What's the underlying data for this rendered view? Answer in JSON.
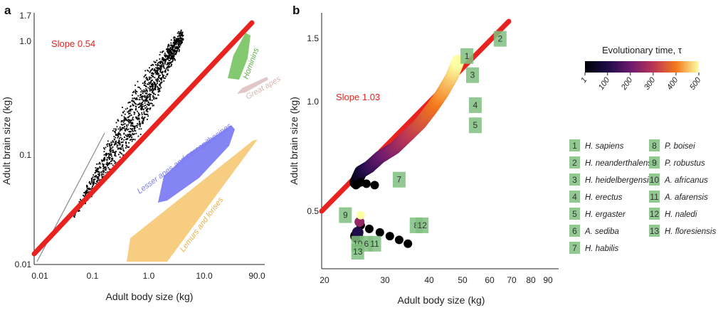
{
  "colors": {
    "fit_line": "#e8231f",
    "hominin_badge": "#7fc07f",
    "scatter": "#000000",
    "apes_region": "#6f6ff2",
    "lemurs_region": "#f5c262",
    "hominins_region": "#6cbf57",
    "other_region": "#d9b9b9",
    "gray_line": "#8a8a8a"
  },
  "panels": {
    "a": {
      "letter": "a",
      "slope_label": "Slope 0.54",
      "xlabel": "Adult body size (kg)",
      "ylabel": "Adult brain size (kg)",
      "x_ticks": [
        "0.01",
        "0.1",
        "1.0",
        "10.0",
        "90.0"
      ],
      "y_ticks": [
        "0.01",
        "0.1",
        "1.0",
        "1.7"
      ],
      "region_labels": {
        "apes": "Lesser apes and cercopithecines",
        "lemurs": "Lemurs and lorises",
        "hominins": "Hominins",
        "other": "Great apes"
      }
    },
    "b": {
      "letter": "b",
      "slope_label": "Slope 1.03",
      "xlabel": "Adult body size (kg)",
      "ylabel": "Adult brain size (kg)",
      "x_ticks": [
        "20",
        "30",
        "40",
        "50",
        "60",
        "70",
        "80",
        "90"
      ],
      "y_ticks": [
        "0.5",
        "1.0",
        "1.5"
      ]
    }
  },
  "colorbar": {
    "title": "Evolutionary time, τ",
    "ticks": [
      "1",
      "100",
      "200",
      "300",
      "400",
      "500"
    ]
  },
  "legend": {
    "col1": [
      {
        "num": "1",
        "name": "H. sapiens"
      },
      {
        "num": "2",
        "name": "H. neanderthalensis"
      },
      {
        "num": "3",
        "name": "H. heidelbergensis"
      },
      {
        "num": "4",
        "name": "H. erectus"
      },
      {
        "num": "5",
        "name": "H. ergaster"
      },
      {
        "num": "6",
        "name": "A. sediba"
      },
      {
        "num": "7",
        "name": "H. habilis"
      }
    ],
    "col2": [
      {
        "num": "8",
        "name": "P. boisei"
      },
      {
        "num": "9",
        "name": "P. robustus"
      },
      {
        "num": "10",
        "name": "A. africanus"
      },
      {
        "num": "11",
        "name": "A. afarensis"
      },
      {
        "num": "12",
        "name": "H. naledi"
      },
      {
        "num": "13",
        "name": "H. floresiensis"
      }
    ]
  },
  "chart_data": [
    {
      "type": "scatter",
      "panel": "a",
      "xlabel": "Adult body size (kg)",
      "ylabel": "Adult brain size (kg)",
      "xscale": "log",
      "yscale": "log",
      "xlim": [
        0.01,
        90
      ],
      "ylim": [
        0.01,
        1.7
      ],
      "fit_line": {
        "label": "Slope 0.54",
        "slope": 0.54,
        "x": [
          0.01,
          90
        ],
        "y": [
          0.0135,
          1.6
        ]
      },
      "scatter_extent": {
        "x": [
          0.05,
          4.5
        ],
        "y": [
          0.018,
          0.45
        ]
      },
      "regions": [
        {
          "name": "Lesser apes and cercopithecines",
          "x": [
            0.8,
            16
          ],
          "y": [
            0.035,
            0.17
          ]
        },
        {
          "name": "Lemurs and lorises",
          "x": [
            0.4,
            40
          ],
          "y": [
            0.007,
            0.12
          ]
        },
        {
          "name": "Hominins",
          "x": [
            25,
            50
          ],
          "y": [
            0.35,
            1.3
          ]
        },
        {
          "name": "Great apes",
          "x": [
            30,
            90
          ],
          "y": [
            0.25,
            0.35
          ]
        }
      ]
    },
    {
      "type": "line",
      "panel": "b",
      "xlabel": "Adult body size (kg)",
      "ylabel": "Adult brain size (kg)",
      "xscale": "log",
      "yscale": "log",
      "xlim": [
        20,
        90
      ],
      "ylim": [
        0.38,
        1.7
      ],
      "fit_line": {
        "label": "Slope 1.03",
        "slope": 1.03,
        "x": [
          20,
          70
        ],
        "y": [
          0.47,
          1.66
        ]
      },
      "trajectory": {
        "x": [
          49,
          47,
          44,
          41,
          38,
          35,
          32,
          29,
          27,
          25.5,
          24.7
        ],
        "y": [
          1.28,
          1.17,
          1.06,
          0.97,
          0.89,
          0.83,
          0.77,
          0.73,
          0.69,
          0.67,
          0.63
        ],
        "tau": [
          500,
          460,
          420,
          380,
          340,
          300,
          240,
          180,
          120,
          60,
          1
        ]
      },
      "branch_points": {
        "x": [
          24.7,
          25.5,
          26.5,
          28
        ],
        "y": [
          0.62,
          0.63,
          0.625,
          0.62
        ]
      },
      "lower_branch": {
        "x": [
          25.5,
          27,
          29,
          31,
          33,
          35
        ],
        "y": [
          0.49,
          0.48,
          0.47,
          0.46,
          0.45,
          0.44
        ]
      },
      "cluster": {
        "x": [
          24.8,
          25,
          25.3,
          25.5
        ],
        "y": [
          0.46,
          0.47,
          0.5,
          0.52
        ],
        "tau": [
          1,
          100,
          250,
          500
        ]
      },
      "hominins": [
        {
          "num": "1",
          "name": "H. sapiens",
          "x": 52,
          "y": 1.32
        },
        {
          "num": "2",
          "name": "H. neanderthalensis",
          "x": 65,
          "y": 1.46
        },
        {
          "num": "3",
          "name": "H. heidelbergensis",
          "x": 54,
          "y": 1.18
        },
        {
          "num": "4",
          "name": "H. erectus",
          "x": 55,
          "y": 0.99
        },
        {
          "num": "5",
          "name": "H. ergaster",
          "x": 55,
          "y": 0.88
        },
        {
          "num": "6",
          "name": "A. sediba",
          "x": 26.5,
          "y": 0.44
        },
        {
          "num": "7",
          "name": "H. habilis",
          "x": 33,
          "y": 0.64
        },
        {
          "num": "8",
          "name": "P. boisei",
          "x": 37,
          "y": 0.49
        },
        {
          "num": "9",
          "name": "P. robustus",
          "x": 23,
          "y": 0.52
        },
        {
          "num": "10",
          "name": "A. africanus",
          "x": 25,
          "y": 0.44
        },
        {
          "num": "11",
          "name": "A. afarensis",
          "x": 28,
          "y": 0.44
        },
        {
          "num": "12",
          "name": "H. naledi",
          "x": 38.5,
          "y": 0.49
        },
        {
          "num": "13",
          "name": "H. floresiensis",
          "x": 25,
          "y": 0.42
        }
      ]
    }
  ]
}
